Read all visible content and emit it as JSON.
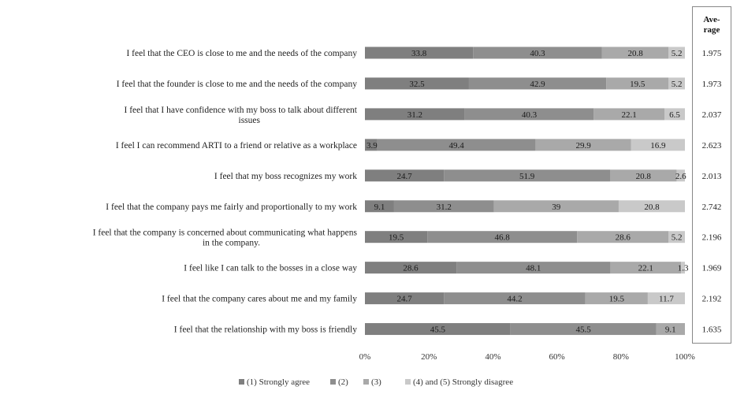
{
  "chart_data": {
    "type": "bar",
    "stacked": true,
    "orientation": "horizontal",
    "percent_stacked": true,
    "categories": [
      "I feel that the CEO is close to me and the needs of the company",
      "I feel that the founder is close to me and the needs of the company",
      "I feel that I have confidence with my boss to talk about different issues",
      "I feel I can recommend ARTI to a friend or relative as a workplace",
      "I feel that my boss recognizes my work",
      "I feel that the company pays me fairly and proportionally to my work",
      "I feel that the company is concerned about communicating what happens in the company.",
      "I feel like I can talk to the bosses in a close way",
      "I feel that the company cares about me and my family",
      "I feel that the relationship with my boss is friendly"
    ],
    "series": [
      {
        "name": "(1) Strongly agree",
        "color": "#7f7f7f",
        "values": [
          33.8,
          32.5,
          31.2,
          3.9,
          24.7,
          9.1,
          19.5,
          28.6,
          24.7,
          45.5
        ]
      },
      {
        "name": "(2)",
        "color": "#8e8e8e",
        "values": [
          40.3,
          42.9,
          40.3,
          49.4,
          51.9,
          31.2,
          46.8,
          48.1,
          44.2,
          45.5
        ]
      },
      {
        "name": "(3)",
        "color": "#a9a9a9",
        "values": [
          20.8,
          19.5,
          22.1,
          29.9,
          20.8,
          39,
          28.6,
          22.1,
          19.5,
          9.1
        ]
      },
      {
        "name": "(4) and (5) Strongly disagree",
        "color": "#c9c9c9",
        "values": [
          5.2,
          5.2,
          6.5,
          16.9,
          2.6,
          20.8,
          5.2,
          1.3,
          11.7,
          null
        ]
      }
    ],
    "xticks": [
      "0%",
      "20%",
      "40%",
      "60%",
      "80%",
      "100%"
    ],
    "xlim": [
      0,
      100
    ],
    "legend_position": "bottom",
    "grid": false
  },
  "average": {
    "header": "Ave-rage",
    "header_lines": [
      "Ave-",
      "rage"
    ],
    "values": [
      "1.975",
      "1.973",
      "2.037",
      "2.623",
      "2.013",
      "2.742",
      "2.196",
      "1.969",
      "2.192",
      "1.635"
    ]
  }
}
